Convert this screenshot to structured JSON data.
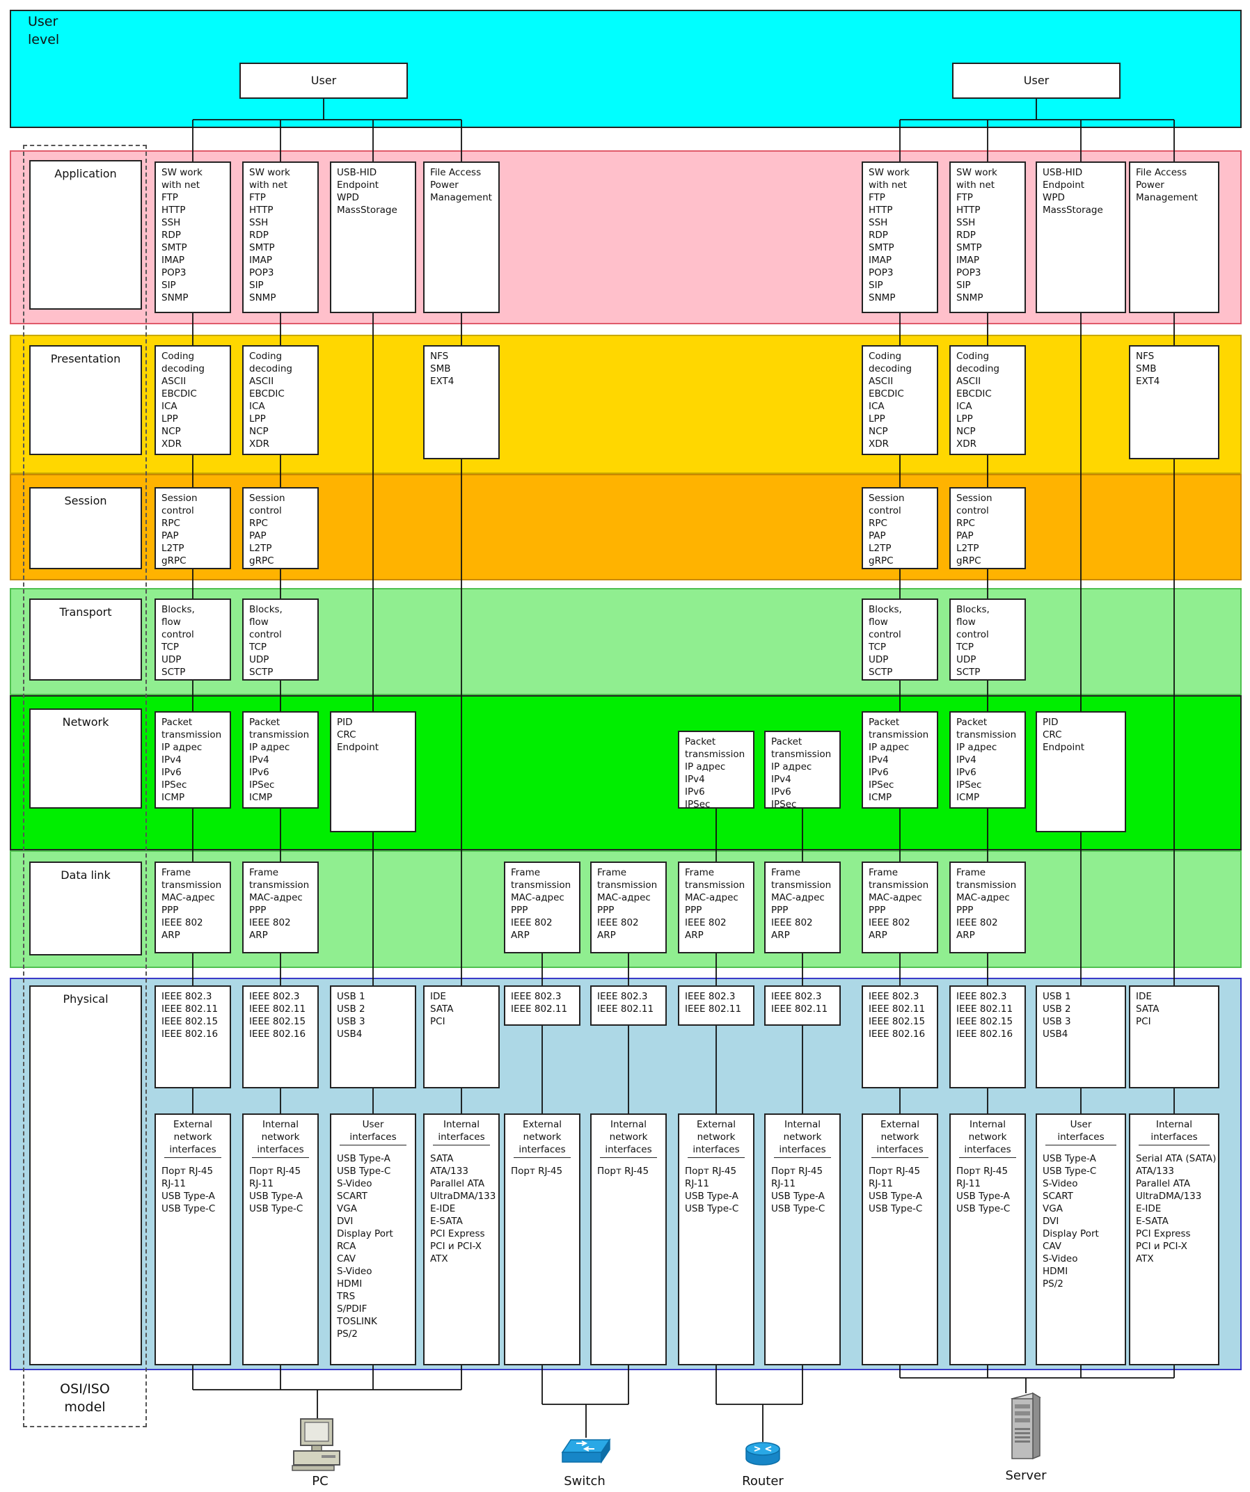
{
  "user_level_label": "User\nlevel",
  "osi_label": "OSI/ISO\nmodel",
  "colors": {
    "user": "#00ffff",
    "application": "#ffc0cb",
    "presentation": "#ffd700",
    "session": "#ffb300",
    "transport": "#90ee90",
    "network": "#00ee00",
    "datalink": "#90ee90",
    "physical": "#add8e6"
  },
  "users": {
    "left": "User",
    "right": "User"
  },
  "layers": {
    "application": "Application",
    "presentation": "Presentation",
    "session": "Session",
    "transport": "Transport",
    "network": "Network",
    "datalink": "Data link",
    "physical": "Physical"
  },
  "texts": {
    "app_sw": "SW work\nwith net\nFTP\nHTTP\nSSH\nRDP\nSMTP\nIMAP\nPOP3\nSIP\nSNMP",
    "app_usb": "USB-HID\nEndpoint\nWPD\nMassStorage",
    "app_file": "File Access\nPower\nManagement",
    "pres_coding": "Coding\ndecoding\nASCII\nEBCDIC\nICA\nLPP\nNCP\nXDR",
    "pres_nfs": "NFS\nSMB\nEXT4",
    "sess": "Session\ncontrol\nRPC\nPAP\nL2TP\ngRPC",
    "trans": "Blocks,\nflow\ncontrol\nTCP\nUDP\nSCTP",
    "net_packet": "Packet\ntransmission\nIP адрес\nIPv4\nIPv6\nIPSec\nICMP",
    "net_pid": "PID\nCRC\nEndpoint",
    "dl_frame": "Frame\ntransmission\nMAC-адрес\nPPP\nIEEE 802\nARP",
    "phy_ieee4": "IEEE 802.3\nIEEE 802.11\nIEEE 802.15\nIEEE 802.16",
    "phy_ieee2": "IEEE 802.3\nIEEE 802.11",
    "phy_usb": "USB 1\nUSB 2\nUSB 3\nUSB4",
    "phy_ide": "IDE\nSATA\nPCI"
  },
  "interfaces": {
    "ext_h": "External\nnetwork\ninterfaces",
    "int_h": "Internal\nnetwork\ninterfaces",
    "user_h": "User\ninterfaces",
    "intf_h": "Internal\ninterfaces",
    "ports_full": "Порт RJ-45\nRJ-11\nUSB Type-A\nUSB Type-C",
    "ports_rj45": "Порт RJ-45",
    "pc_user": "USB Type-A\nUSB Type-C\nS-Video\nSCART\nVGA\nDVI\nDisplay Port\nRCA\nCAV\nS-Video\nHDMI\nTRS\nS/PDIF\nTOSLINK\nPS/2",
    "pc_internal": "SATA\nATA/133\nParallel ATA\nUltraDMA/133\nE-IDE\nE-SATA\nPCI Express\nPCI и PCI-X\nATX",
    "srv_user": "USB Type-A\nUSB Type-C\nS-Video\nSCART\nVGA\nDVI\nDisplay Port\nCAV\nS-Video\nHDMI\nPS/2",
    "srv_internal": "Serial ATA (SATA)\nATA/133\nParallel ATA\nUltraDMA/133\nE-IDE\nE-SATA\nPCI Express\nPCI и PCI-X\nATX"
  },
  "devices": {
    "pc": "PC",
    "switch": "Switch",
    "router": "Router",
    "server": "Server"
  },
  "icons": [
    "pc-icon",
    "switch-icon",
    "router-icon",
    "server-icon"
  ]
}
